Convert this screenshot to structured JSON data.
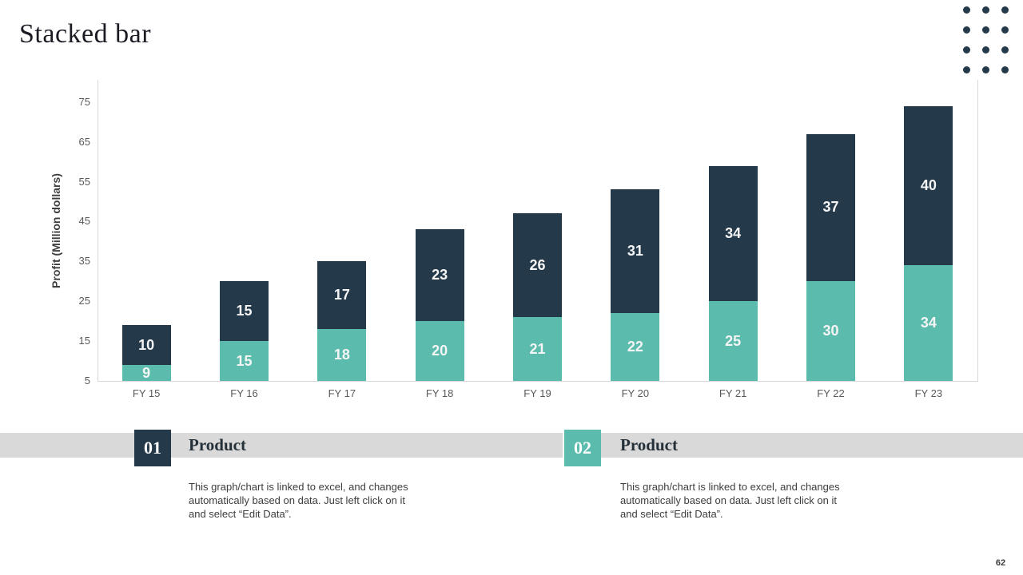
{
  "slide": {
    "title": "Stacked bar",
    "page_number": "62",
    "accent_navy": "#24394a",
    "accent_teal": "#5bbcad",
    "band_color": "#d9d9d9"
  },
  "chart_data": {
    "type": "bar",
    "stacked": true,
    "ylabel": "Profit (Million dollars)",
    "categories": [
      "FY 15",
      "FY 16",
      "FY 17",
      "FY 18",
      "FY 19",
      "FY 20",
      "FY 21",
      "FY 22",
      "FY 23"
    ],
    "series": [
      {
        "position": "bottom",
        "color": "#5bbcad",
        "values": [
          9,
          15,
          18,
          20,
          21,
          22,
          25,
          30,
          34
        ]
      },
      {
        "position": "top",
        "color": "#24394a",
        "values": [
          10,
          15,
          17,
          23,
          26,
          31,
          34,
          37,
          40
        ]
      }
    ],
    "yticks": [
      5,
      15,
      25,
      35,
      45,
      55,
      65,
      75
    ],
    "ylim": [
      5,
      80.5
    ],
    "grid": false,
    "legend": "none",
    "value_label_color": "#ffffff"
  },
  "sections": [
    {
      "number": "01",
      "title": "Product",
      "badge_color": "#24394a",
      "description_lines": [
        "This graph/chart is linked to excel, and changes",
        "automatically based on data. Just left click on it",
        "and select “Edit Data”."
      ]
    },
    {
      "number": "02",
      "title": "Product",
      "badge_color": "#5bbcad",
      "description_lines": [
        "This graph/chart is linked to excel, and changes",
        "automatically based on data. Just left click on it",
        "and select “Edit Data”."
      ]
    }
  ]
}
